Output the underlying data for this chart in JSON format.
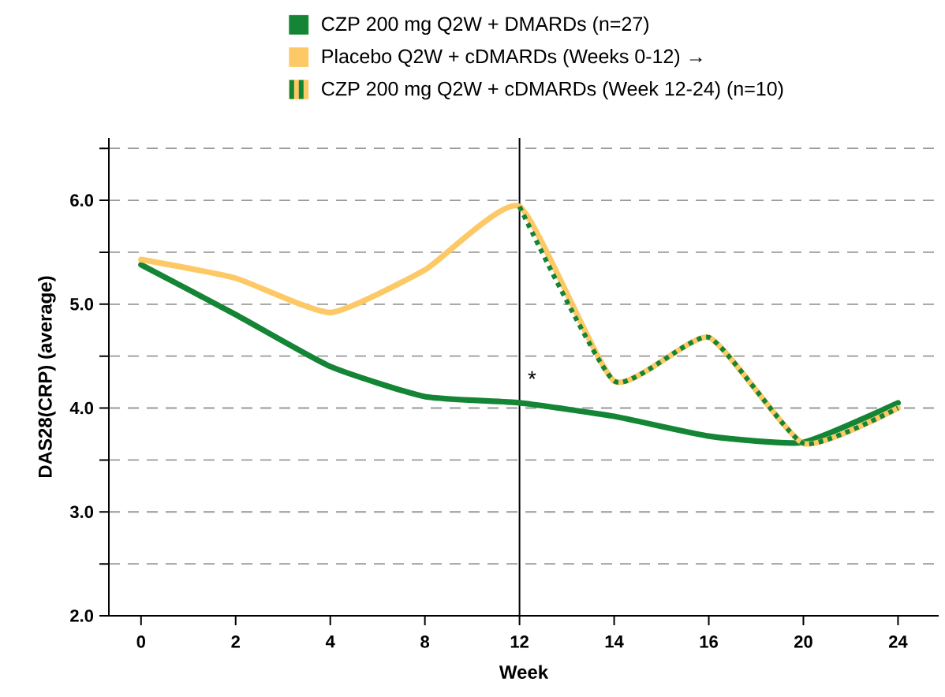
{
  "chart_data": {
    "type": "line",
    "xlabel": "Week",
    "ylabel": "DAS28(CRP) (average)",
    "categories": [
      "0",
      "2",
      "4",
      "8",
      "12",
      "14",
      "16",
      "20",
      "24"
    ],
    "series": [
      {
        "name": "CZP 200 mg Q2W + DMARDs (n=27)",
        "color": "#138535",
        "values": [
          5.38,
          4.9,
          4.4,
          4.11,
          4.05,
          3.92,
          3.73,
          3.67,
          4.05
        ]
      },
      {
        "name": "Placebo Q2W + cDMARDs (Weeks 0-12) →",
        "color": "#fdc967",
        "values": [
          5.43,
          5.25,
          4.92,
          5.33,
          5.94,
          4.26,
          4.68,
          3.66,
          4.0
        ]
      },
      {
        "name": "CZP 200 mg Q2W + cDMARDs (Week 12-24) (n=10)",
        "color": "#138535",
        "line_style": "dashed",
        "values": [
          null,
          null,
          null,
          null,
          5.94,
          4.26,
          4.68,
          3.66,
          4.0
        ]
      }
    ],
    "ylim": [
      2,
      6.6
    ],
    "yticks": [
      {
        "value": 2,
        "label": "2.0"
      },
      {
        "value": 2.5,
        "label": null
      },
      {
        "value": 3,
        "label": "3.0"
      },
      {
        "value": 3.5,
        "label": null
      },
      {
        "value": 4,
        "label": "4.0"
      },
      {
        "value": 4.5,
        "label": null
      },
      {
        "value": 5,
        "label": "5.0"
      },
      {
        "value": 5.5,
        "label": null
      },
      {
        "value": 6,
        "label": "6.0"
      },
      {
        "value": 6.5,
        "label": null
      }
    ],
    "grid": "y",
    "legend": "top",
    "ref_lines": [
      {
        "axis": "x",
        "value": "12",
        "label": null
      }
    ],
    "annotations": [
      {
        "text": "*",
        "x": "12",
        "y": 4.19
      }
    ]
  }
}
